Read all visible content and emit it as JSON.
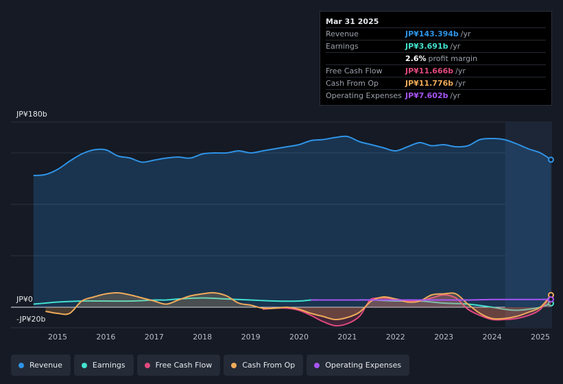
{
  "tooltip": {
    "date": "Mar 31 2025",
    "rows": [
      {
        "label": "Revenue",
        "value": "JP¥143.394b",
        "unit": "/yr",
        "color": "#2f93e6"
      },
      {
        "label": "Earnings",
        "value": "JP¥3.691b",
        "unit": "/yr",
        "color": "#43e2cf"
      },
      {
        "label": "",
        "value": "2.6%",
        "unit": "profit margin",
        "color": "#ffffff"
      },
      {
        "label": "Free Cash Flow",
        "value": "JP¥11.666b",
        "unit": "/yr",
        "color": "#e0497e"
      },
      {
        "label": "Cash From Op",
        "value": "JP¥11.776b",
        "unit": "/yr",
        "color": "#f0ab5a"
      },
      {
        "label": "Operating Expenses",
        "value": "JP¥7.602b",
        "unit": "/yr",
        "color": "#a855f7"
      }
    ]
  },
  "legend": [
    {
      "label": "Revenue",
      "color": "#2f93e6"
    },
    {
      "label": "Earnings",
      "color": "#43e2cf"
    },
    {
      "label": "Free Cash Flow",
      "color": "#e0497e"
    },
    {
      "label": "Cash From Op",
      "color": "#f0ab5a"
    },
    {
      "label": "Operating Expenses",
      "color": "#a855f7"
    }
  ],
  "chart_data": {
    "type": "line",
    "title": "",
    "ylabel": "",
    "xlabel": "",
    "unit": "JP¥ billions",
    "ylim": [
      -20,
      180
    ],
    "y_tick_labels": [
      {
        "value": 180,
        "label": "JP¥180b"
      },
      {
        "value": 0,
        "label": "JP¥0"
      },
      {
        "value": -20,
        "label": "-JP¥20b"
      }
    ],
    "gridlines": [
      180,
      150,
      100,
      50,
      0
    ],
    "xlim": [
      2014.0,
      2025.27
    ],
    "x_ticks": [
      2015,
      2016,
      2017,
      2018,
      2019,
      2020,
      2021,
      2022,
      2023,
      2024,
      2025
    ],
    "x_tick_labels": [
      "2015",
      "2016",
      "2017",
      "2018",
      "2019",
      "2020",
      "2021",
      "2022",
      "2023",
      "2024",
      "2025"
    ],
    "forecast_shade_start": 2024.27,
    "series": [
      {
        "name": "Revenue",
        "color": "#2f93e6",
        "fill": true,
        "points": [
          [
            2014.5,
            128
          ],
          [
            2014.75,
            129
          ],
          [
            2015.0,
            134
          ],
          [
            2015.25,
            142
          ],
          [
            2015.5,
            149
          ],
          [
            2015.75,
            153
          ],
          [
            2016.0,
            153
          ],
          [
            2016.25,
            147
          ],
          [
            2016.5,
            145
          ],
          [
            2016.75,
            141
          ],
          [
            2017.0,
            143
          ],
          [
            2017.25,
            145
          ],
          [
            2017.5,
            146
          ],
          [
            2017.75,
            145
          ],
          [
            2018.0,
            149
          ],
          [
            2018.25,
            150
          ],
          [
            2018.5,
            150
          ],
          [
            2018.75,
            152
          ],
          [
            2019.0,
            150
          ],
          [
            2019.25,
            152
          ],
          [
            2019.5,
            154
          ],
          [
            2019.75,
            156
          ],
          [
            2020.0,
            158
          ],
          [
            2020.25,
            162
          ],
          [
            2020.5,
            163
          ],
          [
            2020.75,
            165
          ],
          [
            2021.0,
            166
          ],
          [
            2021.25,
            161
          ],
          [
            2021.5,
            158
          ],
          [
            2021.75,
            155
          ],
          [
            2022.0,
            152
          ],
          [
            2022.25,
            156
          ],
          [
            2022.5,
            160
          ],
          [
            2022.75,
            157
          ],
          [
            2023.0,
            158
          ],
          [
            2023.25,
            156
          ],
          [
            2023.5,
            157
          ],
          [
            2023.75,
            163
          ],
          [
            2024.0,
            164
          ],
          [
            2024.25,
            163
          ],
          [
            2024.5,
            159
          ],
          [
            2024.75,
            154
          ],
          [
            2025.0,
            150
          ],
          [
            2025.22,
            143.4
          ]
        ]
      },
      {
        "name": "Earnings",
        "color": "#43e2cf",
        "fill": false,
        "points": [
          [
            2014.5,
            3
          ],
          [
            2014.75,
            4
          ],
          [
            2015.0,
            5
          ],
          [
            2015.5,
            6
          ],
          [
            2016.0,
            6
          ],
          [
            2016.5,
            6
          ],
          [
            2017.0,
            7
          ],
          [
            2017.25,
            7
          ],
          [
            2017.5,
            8
          ],
          [
            2018.0,
            9
          ],
          [
            2018.5,
            8
          ],
          [
            2019.0,
            7
          ],
          [
            2019.5,
            6
          ],
          [
            2020.0,
            6
          ],
          [
            2020.25,
            7
          ],
          [
            2020.5,
            7
          ],
          [
            2021.0,
            7
          ],
          [
            2021.5,
            7
          ],
          [
            2022.0,
            6
          ],
          [
            2022.5,
            6
          ],
          [
            2023.0,
            4
          ],
          [
            2023.5,
            3
          ],
          [
            2024.0,
            0
          ],
          [
            2024.25,
            -2
          ],
          [
            2024.5,
            -3
          ],
          [
            2024.75,
            -2
          ],
          [
            2025.0,
            0
          ],
          [
            2025.22,
            3.7
          ]
        ]
      },
      {
        "name": "Free Cash Flow",
        "color": "#e0497e",
        "fill": true,
        "points": [
          [
            2019.25,
            -2
          ],
          [
            2019.5,
            -1
          ],
          [
            2019.75,
            -1
          ],
          [
            2020.0,
            -3
          ],
          [
            2020.25,
            -8
          ],
          [
            2020.5,
            -14
          ],
          [
            2020.75,
            -18
          ],
          [
            2021.0,
            -16
          ],
          [
            2021.25,
            -9
          ],
          [
            2021.4,
            2
          ],
          [
            2021.5,
            8
          ],
          [
            2021.75,
            9
          ],
          [
            2022.0,
            8
          ],
          [
            2022.25,
            6
          ],
          [
            2022.5,
            6
          ],
          [
            2022.75,
            9
          ],
          [
            2023.0,
            12
          ],
          [
            2023.25,
            9
          ],
          [
            2023.5,
            -2
          ],
          [
            2023.75,
            -8
          ],
          [
            2024.0,
            -12
          ],
          [
            2024.25,
            -12
          ],
          [
            2024.5,
            -11
          ],
          [
            2024.75,
            -8
          ],
          [
            2025.0,
            -2
          ],
          [
            2025.22,
            11.7
          ]
        ]
      },
      {
        "name": "Cash From Op",
        "color": "#f0ab5a",
        "fill": true,
        "points": [
          [
            2014.75,
            -4
          ],
          [
            2015.0,
            -6
          ],
          [
            2015.25,
            -6
          ],
          [
            2015.5,
            6
          ],
          [
            2015.75,
            10
          ],
          [
            2016.0,
            13
          ],
          [
            2016.25,
            14
          ],
          [
            2016.5,
            12
          ],
          [
            2016.75,
            9
          ],
          [
            2017.0,
            6
          ],
          [
            2017.25,
            3
          ],
          [
            2017.5,
            7
          ],
          [
            2017.75,
            11
          ],
          [
            2018.0,
            13
          ],
          [
            2018.25,
            14
          ],
          [
            2018.5,
            11
          ],
          [
            2018.75,
            4
          ],
          [
            2019.0,
            2
          ],
          [
            2019.25,
            -1
          ],
          [
            2019.5,
            -1
          ],
          [
            2019.75,
            0
          ],
          [
            2020.0,
            -2
          ],
          [
            2020.25,
            -6
          ],
          [
            2020.5,
            -9
          ],
          [
            2020.75,
            -12
          ],
          [
            2021.0,
            -10
          ],
          [
            2021.25,
            -5
          ],
          [
            2021.5,
            6
          ],
          [
            2021.75,
            10
          ],
          [
            2022.0,
            8
          ],
          [
            2022.25,
            5
          ],
          [
            2022.5,
            6
          ],
          [
            2022.75,
            12
          ],
          [
            2023.0,
            13
          ],
          [
            2023.25,
            13
          ],
          [
            2023.5,
            3
          ],
          [
            2023.75,
            -6
          ],
          [
            2024.0,
            -11
          ],
          [
            2024.25,
            -11
          ],
          [
            2024.5,
            -9
          ],
          [
            2024.75,
            -5
          ],
          [
            2025.0,
            0
          ],
          [
            2025.22,
            11.8
          ]
        ]
      },
      {
        "name": "Operating Expenses",
        "color": "#a855f7",
        "fill": false,
        "points": [
          [
            2020.25,
            7
          ],
          [
            2020.5,
            7
          ],
          [
            2021.0,
            7
          ],
          [
            2021.5,
            7
          ],
          [
            2022.0,
            7
          ],
          [
            2022.5,
            7
          ],
          [
            2023.0,
            7
          ],
          [
            2023.5,
            7
          ],
          [
            2024.0,
            7.5
          ],
          [
            2024.5,
            7.5
          ],
          [
            2025.0,
            7.5
          ],
          [
            2025.22,
            7.6
          ]
        ]
      }
    ]
  }
}
